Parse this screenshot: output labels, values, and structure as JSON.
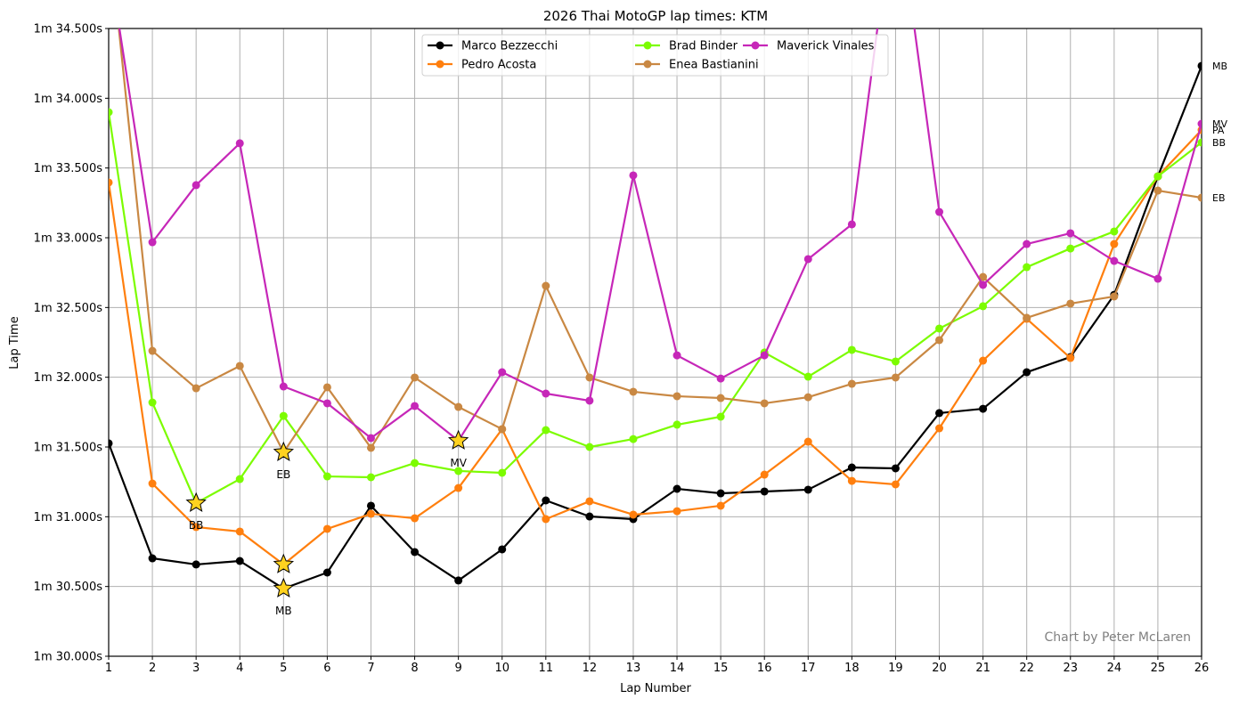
{
  "chart_data": {
    "type": "line",
    "title": "2026 Thai MotoGP lap times: KTM",
    "xlabel": "Lap Number",
    "ylabel": "Lap Time",
    "x": [
      1,
      2,
      3,
      4,
      5,
      6,
      7,
      8,
      9,
      10,
      11,
      12,
      13,
      14,
      15,
      16,
      17,
      18,
      19,
      20,
      21,
      22,
      23,
      24,
      25,
      26
    ],
    "xlim": [
      1,
      26
    ],
    "ylim": [
      30.0,
      34.5
    ],
    "y_unit": "seconds past 1 minute",
    "yticks": [
      30.0,
      30.5,
      31.0,
      31.5,
      32.0,
      32.5,
      33.0,
      33.5,
      34.0,
      34.5
    ],
    "ytick_labels": [
      "1m 30.000s",
      "1m 30.500s",
      "1m 31.000s",
      "1m 31.500s",
      "1m 32.000s",
      "1m 32.500s",
      "1m 33.000s",
      "1m 33.500s",
      "1m 34.000s",
      "1m 34.500s"
    ],
    "xtick_labels": [
      "1",
      "2",
      "3",
      "4",
      "5",
      "6",
      "7",
      "8",
      "9",
      "10",
      "11",
      "12",
      "13",
      "14",
      "15",
      "16",
      "17",
      "18",
      "19",
      "20",
      "21",
      "22",
      "23",
      "24",
      "25",
      "26"
    ],
    "grid": true,
    "legend_position": "upper center",
    "legend_columns": 3,
    "series": [
      {
        "name": "Marco Bezzecchi",
        "abbr": "MB",
        "color": "#000000",
        "values": [
          31.526,
          30.702,
          30.658,
          30.683,
          30.485,
          30.6,
          31.079,
          30.747,
          30.543,
          30.766,
          31.117,
          31.002,
          30.983,
          31.2,
          31.168,
          31.181,
          31.194,
          31.353,
          31.347,
          31.743,
          31.774,
          32.036,
          32.145,
          32.591,
          33.44,
          34.232
        ],
        "fastest_lap": 5
      },
      {
        "name": "Pedro Acosta",
        "abbr": "PA",
        "color": "#ff7f0e",
        "values": [
          33.396,
          31.238,
          30.926,
          30.894,
          30.658,
          30.913,
          31.021,
          30.989,
          31.206,
          31.628,
          30.983,
          31.111,
          31.015,
          31.04,
          31.079,
          31.302,
          31.538,
          31.257,
          31.232,
          31.634,
          32.119,
          32.419,
          32.138,
          32.955,
          33.44,
          33.772
        ],
        "fastest_lap": 5
      },
      {
        "name": "Brad Binder",
        "abbr": "BB",
        "color": "#7cfc00",
        "values": [
          33.9,
          31.819,
          31.098,
          31.27,
          31.723,
          31.289,
          31.283,
          31.385,
          31.328,
          31.315,
          31.621,
          31.5,
          31.557,
          31.66,
          31.717,
          32.177,
          32.004,
          32.196,
          32.113,
          32.349,
          32.509,
          32.789,
          32.923,
          33.045,
          33.44,
          33.683
        ],
        "fastest_lap": 3
      },
      {
        "name": "Enea Bastianini",
        "abbr": "EB",
        "color": "#c98843",
        "values": [
          35.2,
          32.189,
          31.921,
          32.081,
          31.462,
          31.928,
          31.494,
          31.998,
          31.787,
          31.628,
          32.655,
          31.998,
          31.896,
          31.864,
          31.851,
          31.813,
          31.857,
          31.953,
          31.998,
          32.266,
          32.719,
          32.426,
          32.528,
          32.579,
          33.338,
          33.287
        ],
        "fastest_lap": 5
      },
      {
        "name": "Maverick Vinales",
        "abbr": "MV",
        "color": "#c627b8",
        "values": [
          35.0,
          32.968,
          33.377,
          33.677,
          31.934,
          31.813,
          31.564,
          31.794,
          31.545,
          32.036,
          31.883,
          31.832,
          33.447,
          32.157,
          31.991,
          32.157,
          32.847,
          33.096,
          35.5,
          33.185,
          32.662,
          32.955,
          33.032,
          32.834,
          32.706,
          33.817
        ],
        "fastest_lap": 9
      }
    ],
    "annotations": [
      {
        "text": "BB",
        "x": 3,
        "type": "fastest-lap-star"
      },
      {
        "text": "EB",
        "x": 5,
        "type": "fastest-lap-star"
      },
      {
        "text": "MB",
        "x": 5,
        "type": "fastest-lap-star"
      },
      {
        "text": "MV",
        "x": 9,
        "type": "fastest-lap-star"
      }
    ],
    "end_labels": [
      "MB",
      "MV",
      "PA",
      "BB",
      "EB"
    ],
    "watermark": "Chart by Peter McLaren"
  }
}
